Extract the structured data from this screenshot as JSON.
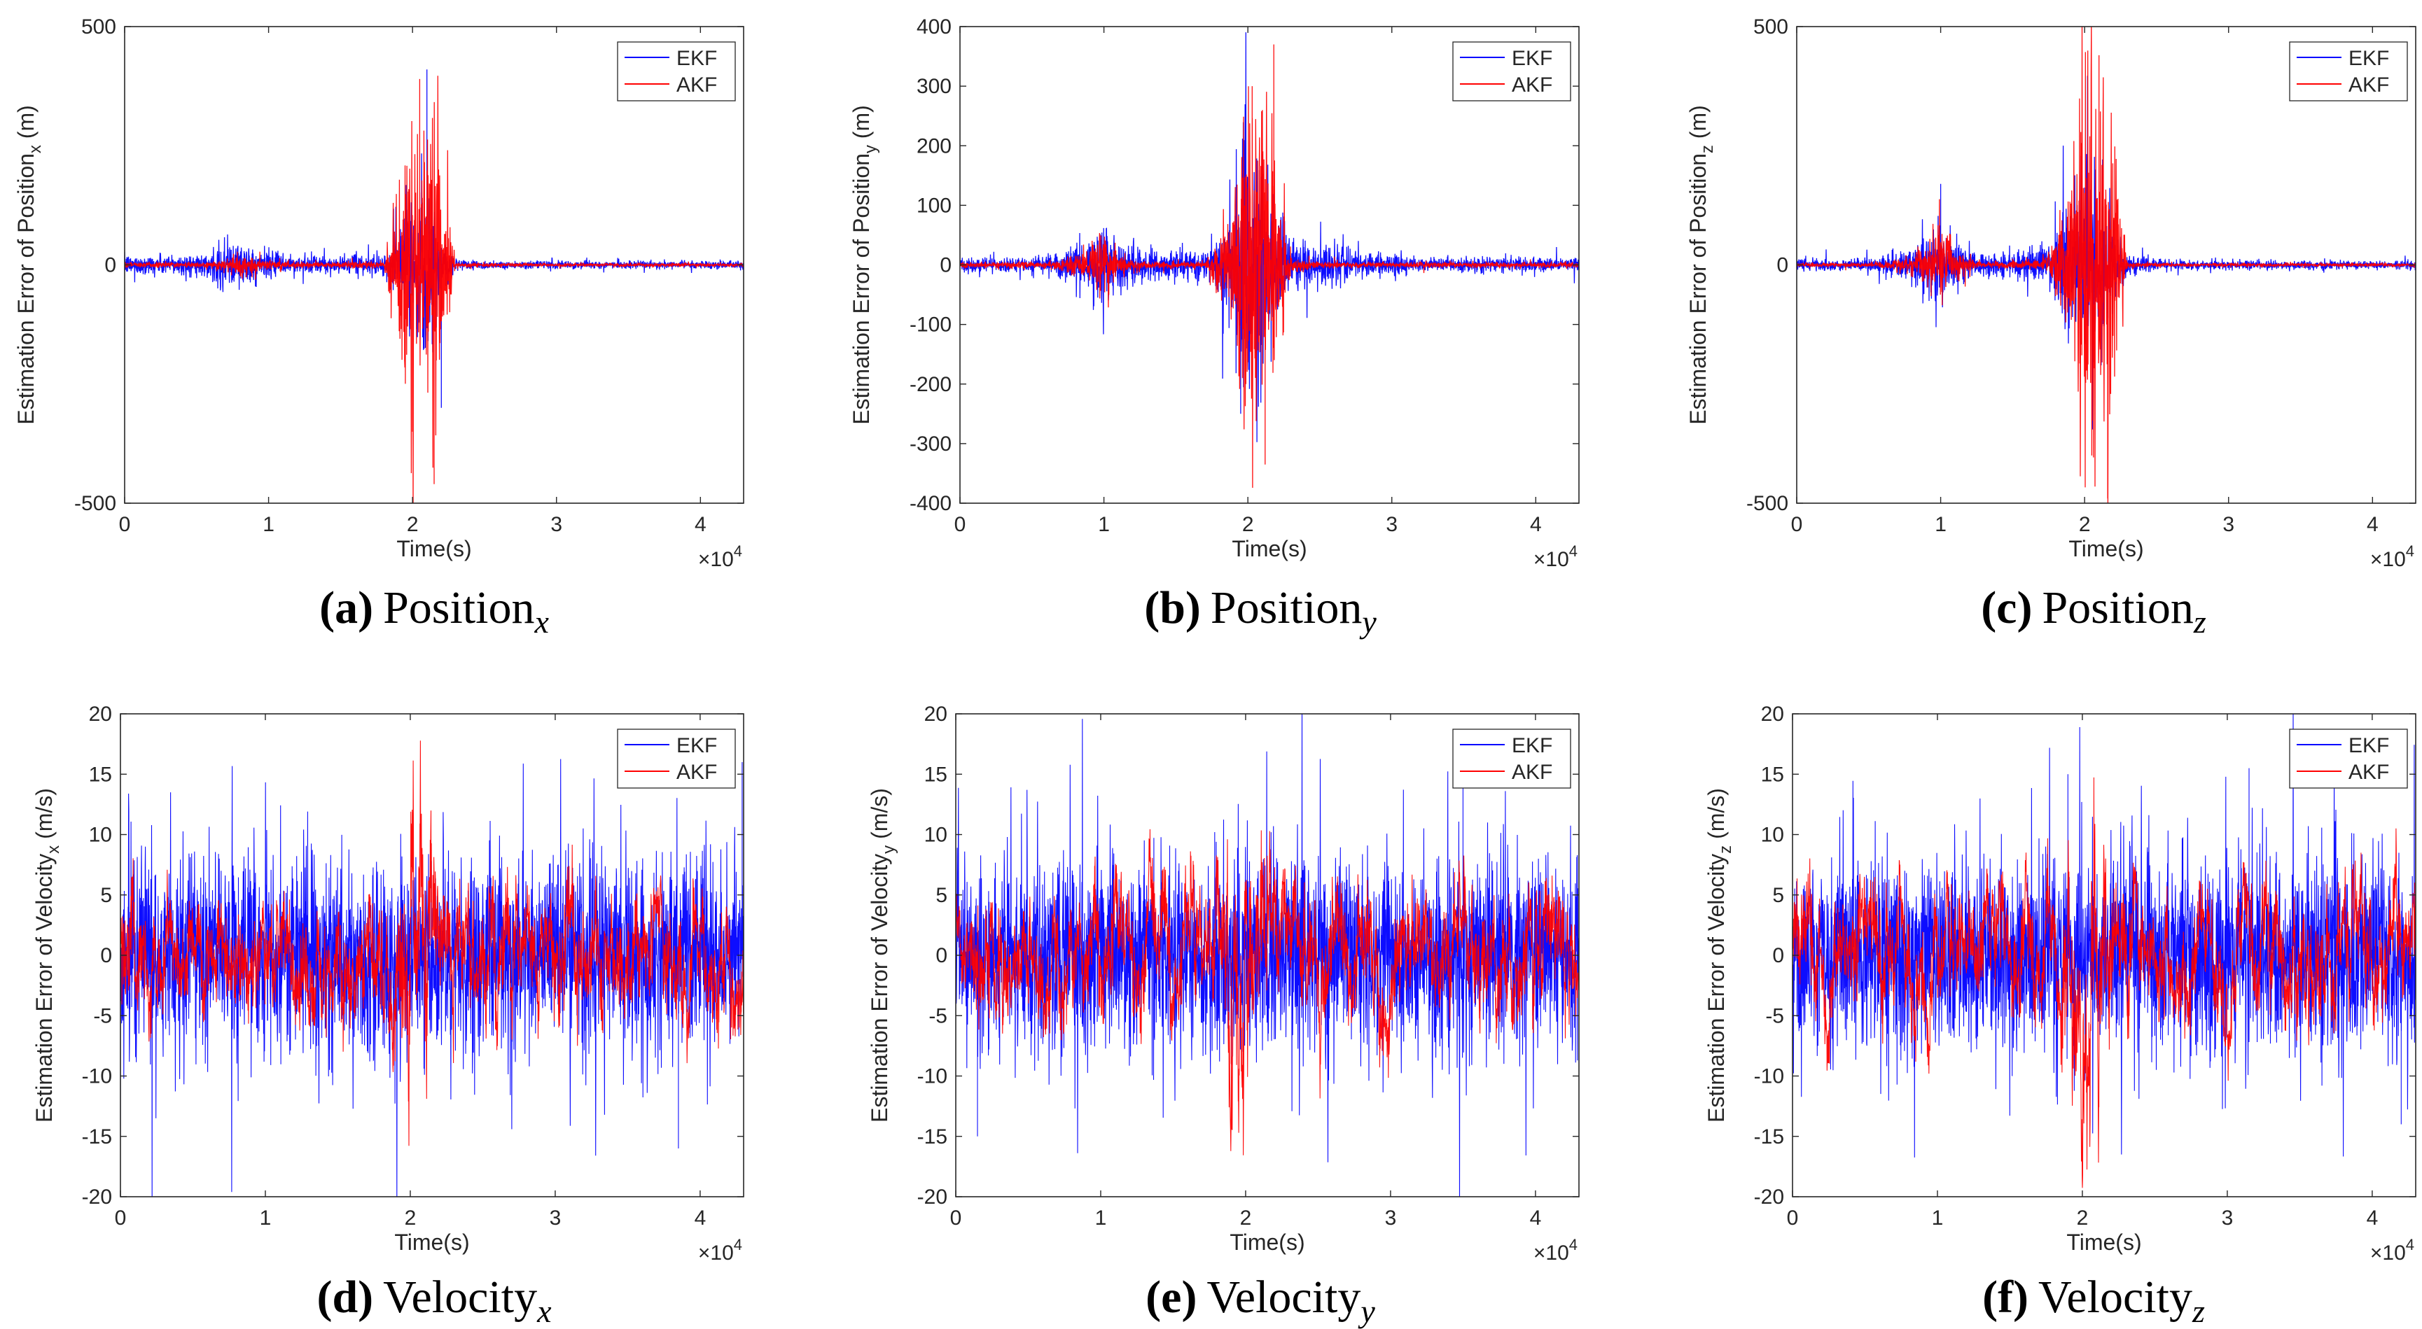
{
  "chart_data": [
    {
      "id": "a",
      "type": "line",
      "caption": {
        "letter": "(a)",
        "word": "Position",
        "sub": "x"
      },
      "ylabel": "Estimation Error of Position",
      "ylabel_sub": "x",
      "ylabel_unit": " (m)",
      "xlabel": "Time(s)",
      "x_multiplier": "×10",
      "x_multiplier_exp": "4",
      "xlim": [
        0,
        43000
      ],
      "ylim": [
        -500,
        500
      ],
      "xticks": [
        0,
        10000,
        20000,
        30000,
        40000
      ],
      "xtick_labels": [
        "0",
        "1",
        "2",
        "3",
        "4"
      ],
      "yticks": [
        -500,
        0,
        500
      ],
      "ytick_labels": [
        "-500",
        "0",
        "500"
      ],
      "legend_position": "top-right",
      "series": [
        {
          "name": "EKF",
          "color": "#0000ff",
          "x": [
            0,
            6000,
            7000,
            8000,
            9000,
            10000,
            12000,
            15000,
            18000,
            19000,
            20000,
            21000,
            22000,
            23000,
            25000,
            30000,
            43000
          ],
          "amp": [
            18,
            20,
            50,
            45,
            30,
            25,
            18,
            15,
            20,
            60,
            120,
            160,
            60,
            12,
            8,
            7,
            7
          ]
        },
        {
          "name": "AKF",
          "color": "#ff0000",
          "x": [
            0,
            6000,
            7000,
            8000,
            9000,
            10000,
            12000,
            15000,
            18000,
            19000,
            20000,
            21000,
            22000,
            23000,
            25000,
            30000,
            43000
          ],
          "amp": [
            5,
            5,
            15,
            20,
            18,
            10,
            5,
            5,
            8,
            150,
            260,
            320,
            200,
            5,
            3,
            3,
            3
          ]
        }
      ],
      "peaks": [
        {
          "series": "EKF",
          "x": 21000,
          "y": 410
        },
        {
          "series": "AKF",
          "x": 20500,
          "y": 390
        },
        {
          "series": "AKF",
          "x": 21500,
          "y": -460
        },
        {
          "series": "AKF",
          "x": 20000,
          "y": -350
        },
        {
          "series": "EKF",
          "x": 22000,
          "y": -300
        }
      ]
    },
    {
      "id": "b",
      "type": "line",
      "caption": {
        "letter": "(b)",
        "word": "Position",
        "sub": "y"
      },
      "ylabel": "Estimation Error of Position",
      "ylabel_sub": "y",
      "ylabel_unit": " (m)",
      "xlabel": "Time(s)",
      "x_multiplier": "×10",
      "x_multiplier_exp": "4",
      "xlim": [
        0,
        43000
      ],
      "ylim": [
        -400,
        400
      ],
      "xticks": [
        0,
        10000,
        20000,
        30000,
        40000
      ],
      "xtick_labels": [
        "0",
        "1",
        "2",
        "3",
        "4"
      ],
      "yticks": [
        -400,
        -300,
        -200,
        -100,
        0,
        100,
        200,
        300,
        400
      ],
      "ytick_labels": [
        "-400",
        "-300",
        "-200",
        "-100",
        "0",
        "100",
        "200",
        "300",
        "400"
      ],
      "legend_position": "top-right",
      "series": [
        {
          "name": "EKF",
          "color": "#0000ff",
          "x": [
            0,
            6000,
            9000,
            10000,
            11000,
            13000,
            17000,
            18000,
            19000,
            20000,
            21000,
            22000,
            23000,
            25000,
            28000,
            32000,
            43000
          ],
          "amp": [
            10,
            12,
            35,
            70,
            35,
            25,
            20,
            50,
            100,
            200,
            150,
            80,
            40,
            35,
            20,
            12,
            10
          ]
        },
        {
          "name": "AKF",
          "color": "#ff0000",
          "x": [
            0,
            6000,
            9000,
            10000,
            11000,
            13000,
            17000,
            18000,
            19000,
            20000,
            21000,
            22000,
            23000,
            25000,
            28000,
            32000,
            43000
          ],
          "amp": [
            4,
            5,
            20,
            60,
            15,
            5,
            5,
            40,
            90,
            260,
            300,
            120,
            10,
            5,
            4,
            4,
            4
          ]
        }
      ],
      "peaks": [
        {
          "series": "AKF",
          "x": 21800,
          "y": 370
        },
        {
          "series": "AKF",
          "x": 21200,
          "y": -335
        },
        {
          "series": "EKF",
          "x": 19500,
          "y": -250
        },
        {
          "series": "AKF",
          "x": 20300,
          "y": 300
        }
      ]
    },
    {
      "id": "c",
      "type": "line",
      "caption": {
        "letter": "(c)",
        "word": "Position",
        "sub": "z"
      },
      "ylabel": "Estimation Error of Position",
      "ylabel_sub": "z",
      "ylabel_unit": " (m)",
      "xlabel": "Time(s)",
      "x_multiplier": "×10",
      "x_multiplier_exp": "4",
      "xlim": [
        0,
        43000
      ],
      "ylim": [
        -500,
        500
      ],
      "xticks": [
        0,
        10000,
        20000,
        30000,
        40000
      ],
      "xtick_labels": [
        "0",
        "1",
        "2",
        "3",
        "4"
      ],
      "yticks": [
        -500,
        0,
        500
      ],
      "ytick_labels": [
        "-500",
        "0",
        "500"
      ],
      "legend_position": "top-right",
      "series": [
        {
          "name": "EKF",
          "color": "#0000ff",
          "x": [
            0,
            5000,
            8000,
            9000,
            10000,
            11000,
            13000,
            17000,
            18000,
            19000,
            20000,
            21000,
            22000,
            23000,
            26000,
            32000,
            43000
          ],
          "amp": [
            10,
            12,
            35,
            60,
            80,
            40,
            20,
            30,
            60,
            130,
            180,
            160,
            80,
            20,
            10,
            8,
            8
          ]
        },
        {
          "name": "AKF",
          "color": "#ff0000",
          "x": [
            0,
            5000,
            8000,
            9000,
            10000,
            11000,
            13000,
            17000,
            18000,
            19000,
            20000,
            21000,
            22000,
            23000,
            26000,
            32000,
            43000
          ],
          "amp": [
            3,
            4,
            15,
            40,
            90,
            25,
            5,
            10,
            50,
            180,
            300,
            350,
            220,
            5,
            3,
            3,
            3
          ]
        }
      ],
      "peaks": [
        {
          "series": "AKF",
          "x": 21000,
          "y": 440
        },
        {
          "series": "AKF",
          "x": 21600,
          "y": -490
        },
        {
          "series": "AKF",
          "x": 20500,
          "y": -400
        },
        {
          "series": "EKF",
          "x": 10000,
          "y": 170
        }
      ]
    },
    {
      "id": "d",
      "type": "line",
      "caption": {
        "letter": "(d)",
        "word": "Velocity",
        "sub": "x"
      },
      "ylabel": "Estimation Error of Velocity",
      "ylabel_sub": "x",
      "ylabel_unit": " (m/s)",
      "xlabel": "Time(s)",
      "x_multiplier": "×10",
      "x_multiplier_exp": "4",
      "xlim": [
        0,
        43000
      ],
      "ylim": [
        -20,
        20
      ],
      "xticks": [
        0,
        10000,
        20000,
        30000,
        40000
      ],
      "xtick_labels": [
        "0",
        "1",
        "2",
        "3",
        "4"
      ],
      "yticks": [
        -20,
        -15,
        -10,
        -5,
        0,
        5,
        10,
        15,
        20
      ],
      "ytick_labels": [
        "-20",
        "-15",
        "-10",
        "-5",
        "0",
        "5",
        "10",
        "15",
        "20"
      ],
      "legend_position": "top-right",
      "series": [
        {
          "name": "EKF",
          "color": "#0000ff",
          "x": [
            0,
            43000
          ],
          "amp": [
            7,
            7
          ]
        },
        {
          "name": "AKF",
          "color": "#ff0000",
          "x": [
            0,
            15000,
            19000,
            20000,
            21000,
            22000,
            26000,
            43000
          ],
          "amp": [
            2.5,
            2.5,
            3,
            5,
            6,
            3,
            2.5,
            2.5
          ]
        }
      ],
      "peaks": [
        {
          "series": "EKF",
          "x": 42900,
          "y": 16
        },
        {
          "series": "EKF",
          "x": 38500,
          "y": -16
        },
        {
          "series": "EKF",
          "x": 0,
          "y": -15
        }
      ]
    },
    {
      "id": "e",
      "type": "line",
      "caption": {
        "letter": "(e)",
        "word": "Velocity",
        "sub": "y"
      },
      "ylabel": "Estimation Error of Velocity",
      "ylabel_sub": "y",
      "ylabel_unit": " (m/s)",
      "xlabel": "Time(s)",
      "x_multiplier": "×10",
      "x_multiplier_exp": "4",
      "xlim": [
        0,
        43000
      ],
      "ylim": [
        -20,
        20
      ],
      "xticks": [
        0,
        10000,
        20000,
        30000,
        40000
      ],
      "xtick_labels": [
        "0",
        "1",
        "2",
        "3",
        "4"
      ],
      "yticks": [
        -20,
        -15,
        -10,
        -5,
        0,
        5,
        10,
        15,
        20
      ],
      "ytick_labels": [
        "-20",
        "-15",
        "-10",
        "-5",
        "0",
        "5",
        "10",
        "15",
        "20"
      ],
      "legend_position": "top-right",
      "series": [
        {
          "name": "EKF",
          "color": "#0000ff",
          "x": [
            0,
            43000
          ],
          "amp": [
            7,
            7
          ]
        },
        {
          "name": "AKF",
          "color": "#ff0000",
          "x": [
            0,
            15000,
            18000,
            19000,
            20000,
            21000,
            22000,
            26000,
            43000
          ],
          "amp": [
            2.5,
            2.5,
            3,
            6,
            5,
            4,
            3,
            2.5,
            2.5
          ]
        }
      ],
      "peaks": [
        {
          "series": "EKF",
          "x": 35000,
          "y": 15
        },
        {
          "series": "EKF",
          "x": 1500,
          "y": -15
        },
        {
          "series": "AKF",
          "x": 19000,
          "y": -9
        }
      ]
    },
    {
      "id": "f",
      "type": "line",
      "caption": {
        "letter": "(f)",
        "word": "Velocity",
        "sub": "z"
      },
      "ylabel": "Estimation Error of Velocity",
      "ylabel_sub": "z",
      "ylabel_unit": " (m/s)",
      "xlabel": "Time(s)",
      "x_multiplier": "×10",
      "x_multiplier_exp": "4",
      "xlim": [
        0,
        43000
      ],
      "ylim": [
        -20,
        20
      ],
      "xticks": [
        0,
        10000,
        20000,
        30000,
        40000
      ],
      "xtick_labels": [
        "0",
        "1",
        "2",
        "3",
        "4"
      ],
      "yticks": [
        -20,
        -15,
        -10,
        -5,
        0,
        5,
        10,
        15,
        20
      ],
      "ytick_labels": [
        "-20",
        "-15",
        "-10",
        "-5",
        "0",
        "5",
        "10",
        "15",
        "20"
      ],
      "legend_position": "top-right",
      "series": [
        {
          "name": "EKF",
          "color": "#0000ff",
          "x": [
            0,
            43000
          ],
          "amp": [
            7,
            7
          ]
        },
        {
          "name": "AKF",
          "color": "#ff0000",
          "x": [
            0,
            17000,
            19000,
            20000,
            21000,
            22000,
            24000,
            43000
          ],
          "amp": [
            2.5,
            2.5,
            4,
            6,
            6,
            3,
            2.5,
            2.5
          ]
        }
      ],
      "peaks": [
        {
          "series": "EKF",
          "x": 31500,
          "y": 15.5
        },
        {
          "series": "EKF",
          "x": 42000,
          "y": -14
        },
        {
          "series": "EKF",
          "x": 19000,
          "y": 15
        }
      ]
    }
  ]
}
